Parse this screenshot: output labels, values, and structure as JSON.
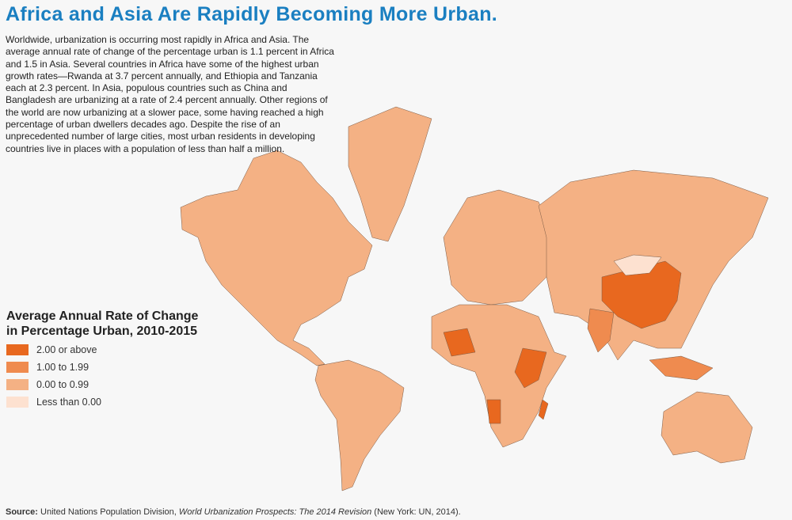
{
  "title": "Africa and Asia Are Rapidly Becoming More Urban.",
  "intro": "Worldwide, urbanization is occurring most rapidly in Africa and Asia. The average annual rate of change of the percentage urban is 1.1 percent in Africa and 1.5 in Asia. Several countries in Africa have some of the highest urban growth rates—Rwanda at 3.7 percent annually, and Ethiopia and Tanzania each at 2.3 percent. In Asia, populous countries such as China and Bangladesh are urbanizing at a rate of 2.4 percent annually. Other regions of the world are now urbanizing at a slower pace, some having reached a high percentage of urban dwellers decades ago. Despite the rise of an unprecedented number of large cities, most urban residents in developing countries live in places with a population of less than half a million.",
  "legend": {
    "title": "Average Annual Rate of Change in Percentage Urban, 2010-2015",
    "items": [
      {
        "label": "2.00 or above",
        "color": "#e8681f"
      },
      {
        "label": "1.00 to 1.99",
        "color": "#ef8b4f"
      },
      {
        "label": "0.00 to 0.99",
        "color": "#f4b184"
      },
      {
        "label": "Less than 0.00",
        "color": "#fde1d0"
      }
    ]
  },
  "source": {
    "label": "Source:",
    "text1": " United Nations Population Division, ",
    "italic": "World Urbanization Prospects: The 2014 Revision",
    "text2": " (New York: UN, 2014)."
  }
}
